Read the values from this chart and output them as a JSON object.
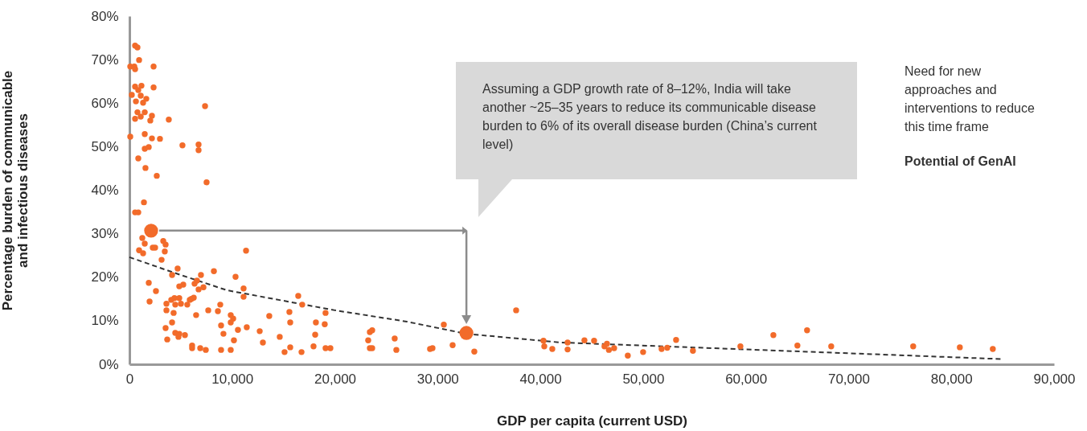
{
  "chart_data": {
    "type": "scatter",
    "xlabel": "GDP per capita (current USD)",
    "ylabel": "Percentage burden of communicable and infectious diseases",
    "xlim": [
      0,
      90000
    ],
    "ylim": [
      0,
      80
    ],
    "xticks": [
      0,
      {
        "value": 10000,
        "label": "10,000"
      },
      {
        "value": 20000,
        "label": "20,000"
      },
      {
        "value": 30000,
        "label": "30,000"
      },
      {
        "value": 40000,
        "label": "40,000"
      },
      {
        "value": 50000,
        "label": "50,000"
      },
      {
        "value": 60000,
        "label": "60,000"
      },
      {
        "value": 70000,
        "label": "70,000"
      },
      {
        "value": 80000,
        "label": "80,000"
      },
      {
        "value": 90000,
        "label": "90,000"
      }
    ],
    "yticks": [
      {
        "value": 0,
        "label": "0%"
      },
      {
        "value": 10,
        "label": "10%"
      },
      {
        "value": 20,
        "label": "20%"
      },
      {
        "value": 30,
        "label": "30%"
      },
      {
        "value": 40,
        "label": "40%"
      },
      {
        "value": 50,
        "label": "50%"
      },
      {
        "value": 60,
        "label": "60%"
      },
      {
        "value": 70,
        "label": "70%"
      },
      {
        "value": 80,
        "label": "80%"
      }
    ],
    "series": [
      {
        "color": "#f26b2a",
        "x": [
          550,
          780,
          940,
          80,
          470,
          550,
          2350,
          550,
          1170,
          860,
          2350,
          230,
          1100,
          1640,
          630,
          1330,
          7360,
          780,
          1100,
          1490,
          2190,
          550,
          2030,
          3830,
          80,
          1490,
          2190,
          2970,
          5160,
          6730,
          6730,
          1490,
          1880,
          860,
          1560,
          2660,
          7510,
          1410,
          550,
          860,
          1250,
          1490,
          2270,
          2500,
          3290,
          3520,
          940,
          1330,
          3440,
          3130,
          11350,
          4690,
          4150,
          8220,
          6960,
          10330,
          1880,
          4850,
          5240,
          6340,
          6570,
          7200,
          6730,
          11110,
          11110,
          2580,
          1960,
          4070,
          4380,
          4850,
          3600,
          4460,
          5010,
          5630,
          5870,
          6030,
          6260,
          3600,
          4300,
          6490,
          7670,
          8610,
          8840,
          9860,
          10100,
          9860,
          8920,
          9150,
          10560,
          10170,
          11420,
          12680,
          12990,
          13610,
          14630,
          15100,
          15650,
          16750,
          15570,
          15650,
          16430,
          16820,
          17920,
          18080,
          18150,
          19010,
          19090,
          19090,
          19560,
          3520,
          4150,
          3680,
          4460,
          4770,
          4850,
          5400,
          6100,
          6100,
          6890,
          7430,
          8920,
          9860,
          23400,
          23630,
          23240,
          23400,
          23630,
          25820,
          25980,
          29260,
          29500,
          30600,
          31460,
          33570,
          37640,
          40300,
          40380,
          41160,
          42650,
          42650,
          44290,
          45230,
          46240,
          46480,
          46670,
          47180,
          48510,
          50000,
          51800,
          52350,
          53210,
          54850,
          59470,
          62680,
          65020,
          65960,
          68310,
          76290,
          80830,
          84040
        ],
        "values": [
          73.2,
          72.8,
          69.9,
          68.4,
          68.4,
          67.8,
          68.4,
          63.8,
          64.0,
          63.0,
          63.6,
          61.9,
          61.7,
          61.0,
          60.4,
          60.1,
          59.3,
          57.9,
          56.9,
          57.9,
          57.1,
          56.4,
          56.0,
          56.2,
          52.3,
          52.9,
          51.9,
          51.8,
          50.3,
          50.5,
          49.2,
          49.5,
          49.9,
          47.3,
          45.1,
          43.3,
          41.8,
          37.2,
          34.9,
          34.9,
          29.0,
          27.7,
          26.8,
          26.8,
          28.3,
          27.5,
          26.2,
          25.5,
          25.9,
          24.0,
          26.1,
          22.0,
          20.5,
          21.4,
          20.5,
          20.1,
          18.7,
          17.9,
          18.3,
          18.5,
          19.2,
          17.7,
          17.2,
          17.4,
          15.5,
          16.8,
          14.4,
          14.8,
          15.2,
          15.2,
          13.9,
          13.7,
          13.9,
          13.7,
          14.8,
          15.0,
          15.3,
          12.4,
          11.8,
          11.3,
          12.4,
          12.2,
          13.7,
          11.3,
          10.5,
          9.6,
          8.9,
          7.0,
          7.9,
          5.5,
          8.5,
          7.6,
          5.0,
          11.1,
          6.3,
          2.8,
          3.9,
          2.8,
          12.0,
          9.6,
          15.7,
          13.7,
          4.1,
          6.8,
          9.6,
          9.2,
          11.8,
          3.7,
          3.7,
          8.3,
          9.6,
          5.7,
          7.2,
          6.3,
          7.0,
          6.7,
          4.3,
          3.7,
          3.7,
          3.3,
          3.3,
          3.3,
          7.4,
          7.8,
          5.5,
          3.7,
          3.7,
          5.9,
          3.3,
          3.5,
          3.7,
          9.1,
          4.4,
          2.9,
          12.4,
          5.4,
          4.1,
          3.5,
          5.0,
          3.4,
          5.5,
          5.4,
          4.1,
          4.7,
          3.3,
          3.7,
          2.0,
          2.8,
          3.5,
          3.8,
          5.6,
          3.1,
          4.1,
          6.7,
          4.3,
          7.8,
          4.1,
          4.1,
          3.9,
          3.5
        ]
      },
      {
        "color": "#f26b2a",
        "x": [
          2110,
          32800
        ],
        "values": [
          30.7,
          7.2
        ]
      },
      {
        "type": "line",
        "color": "#333333",
        "line_style": "dashed",
        "x": [
          0,
          5000,
          9500,
          20000,
          27000,
          32800,
          42000,
          63500,
          84800
        ],
        "values": [
          24.6,
          20.5,
          17.0,
          12.4,
          9.8,
          7.0,
          5.0,
          3.1,
          1.2
        ]
      }
    ],
    "annotations": [
      "Assuming a GDP growth rate of 8–12%, India will take another ~25–35 years to reduce its communicable disease burden to 6% of its overall disease burden (China’s current level)",
      "Need for new approaches and interventions to reduce this time frame",
      "Potential of GenAI"
    ]
  }
}
